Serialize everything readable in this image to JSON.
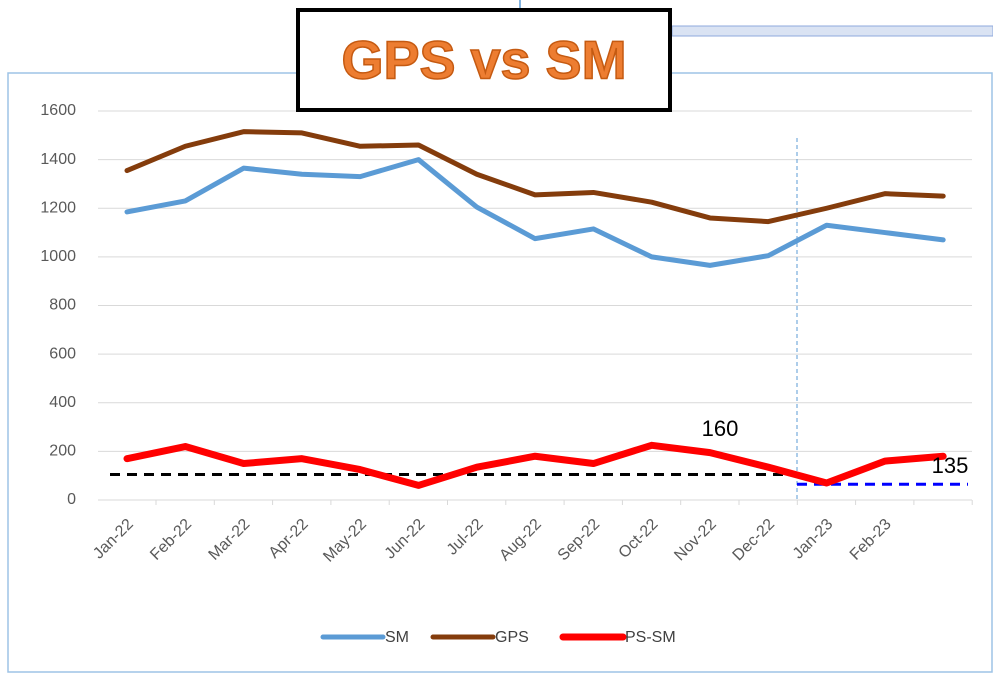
{
  "chart_data": {
    "type": "line",
    "title": "GPS vs SM",
    "categories": [
      "Jan-22",
      "Feb-22",
      "Mar-22",
      "Apr-22",
      "May-22",
      "Jun-22",
      "Jul-22",
      "Aug-22",
      "Sep-22",
      "Oct-22",
      "Nov-22",
      "Dec-22",
      "Jan-23",
      "Feb-23",
      null
    ],
    "series": [
      {
        "name": "SM",
        "color": "#5b9bd5",
        "values": [
          1185,
          1230,
          1365,
          1340,
          1330,
          1400,
          1205,
          1075,
          1115,
          1000,
          965,
          1005,
          1130,
          1100,
          1070
        ]
      },
      {
        "name": "GPS",
        "color": "#843c0c",
        "values": [
          1355,
          1455,
          1515,
          1510,
          1455,
          1460,
          1340,
          1255,
          1265,
          1225,
          1160,
          1145,
          1200,
          1260,
          1250
        ]
      },
      {
        "name": "PS-SM",
        "color": "#ff0000",
        "values": [
          170,
          220,
          150,
          170,
          125,
          60,
          135,
          180,
          150,
          225,
          195,
          135,
          70,
          160,
          180
        ]
      }
    ],
    "reference_lines": [
      {
        "value": 105,
        "color": "#000000"
      },
      {
        "value": 65,
        "color": "#0000ff"
      }
    ],
    "annotations": [
      "160",
      "135"
    ],
    "ylim": [
      0,
      1600
    ],
    "yticks": [
      0,
      200,
      400,
      600,
      800,
      1000,
      1200,
      1400,
      1600
    ],
    "grid": true,
    "legend": "bottom"
  }
}
